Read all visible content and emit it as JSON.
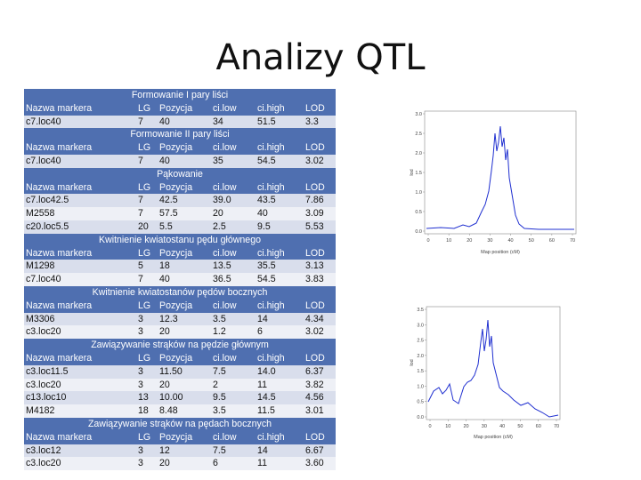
{
  "title": "Analizy QTL",
  "header": {
    "marker": "Nazwa markera",
    "lg": "LG",
    "pos": "Pozycja",
    "cilow": "ci.low",
    "cihigh": "ci.high",
    "lod": "LOD"
  },
  "sections": [
    {
      "name": "Formowanie I pary liści",
      "rows": [
        {
          "marker": "c7.loc40",
          "lg": "7",
          "pos": "40",
          "cilow": "34",
          "cihigh": "51.5",
          "lod": "3.3"
        }
      ]
    },
    {
      "name": "Formowanie II pary liści",
      "rows": [
        {
          "marker": "c7.loc40",
          "lg": "7",
          "pos": "40",
          "cilow": "35",
          "cihigh": "54.5",
          "lod": "3.02"
        }
      ]
    },
    {
      "name": "Pąkowanie",
      "rows": [
        {
          "marker": "c7.loc42.5",
          "lg": "7",
          "pos": "42.5",
          "cilow": "39.0",
          "cihigh": "43.5",
          "lod": "7.86"
        },
        {
          "marker": "M2558",
          "lg": "7",
          "pos": "57.5",
          "cilow": "20",
          "cihigh": "40",
          "lod": "3.09"
        },
        {
          "marker": "c20.loc5.5",
          "lg": "20",
          "pos": "5.5",
          "cilow": "2.5",
          "cihigh": "9.5",
          "lod": "5.53"
        }
      ]
    },
    {
      "name": "Kwitnienie kwiatostanu pędu głównego",
      "rows": [
        {
          "marker": "M1298",
          "lg": "5",
          "pos": "18",
          "cilow": "13.5",
          "cihigh": "35.5",
          "lod": "3.13"
        },
        {
          "marker": "c7.loc40",
          "lg": "7",
          "pos": "40",
          "cilow": "36.5",
          "cihigh": "54.5",
          "lod": "3.83"
        }
      ]
    },
    {
      "name": "Kwitnienie kwiatostanów pędów bocznych",
      "rows": [
        {
          "marker": "M3306",
          "lg": "3",
          "pos": "12.3",
          "cilow": "3.5",
          "cihigh": "14",
          "lod": "4.34"
        },
        {
          "marker": "c3.loc20",
          "lg": "3",
          "pos": "20",
          "cilow": "1.2",
          "cihigh": "6",
          "lod": "3.02"
        }
      ]
    },
    {
      "name": "Zawiązywanie strąków na pędzie głównym",
      "rows": [
        {
          "marker": "c3.loc11.5",
          "lg": "3",
          "pos": "11.50",
          "cilow": "7.5",
          "cihigh": "14.0",
          "lod": "6.37"
        },
        {
          "marker": "c3.loc20",
          "lg": "3",
          "pos": "20",
          "cilow": "2",
          "cihigh": "11",
          "lod": "3.82"
        },
        {
          "marker": "c13.loc10",
          "lg": "13",
          "pos": "10.00",
          "cilow": "9.5",
          "cihigh": "14.5",
          "lod": "4.56"
        },
        {
          "marker": "M4182",
          "lg": "18",
          "pos": "8.48",
          "cilow": "3.5",
          "cihigh": "11.5",
          "lod": "3.01"
        }
      ]
    },
    {
      "name": "Zawiązywanie strąków na pędach bocznych",
      "rows": [
        {
          "marker": "c3.loc12",
          "lg": "3",
          "pos": "12",
          "cilow": "7.5",
          "cihigh": "14",
          "lod": "6.67"
        },
        {
          "marker": "c3.loc20",
          "lg": "3",
          "pos": "20",
          "cilow": "6",
          "cihigh": "11",
          "lod": "3.60"
        }
      ]
    }
  ],
  "plots": [
    {
      "xlabel": "Map position (cM)",
      "ylabel": "lod",
      "yticks": [
        "0.0",
        "0.5",
        "1.0",
        "1.5",
        "2.0",
        "2.5",
        "3.0"
      ],
      "xticks": [
        "0",
        "10",
        "20",
        "30",
        "40",
        "50",
        "60",
        "70"
      ]
    },
    {
      "xlabel": "Map position (cM)",
      "ylabel": "lod",
      "yticks": [
        "0.0",
        "0.5",
        "1.0",
        "1.5",
        "2.0",
        "2.5",
        "3.0",
        "3.5"
      ],
      "xticks": [
        "0",
        "10",
        "20",
        "30",
        "40",
        "50",
        "60",
        "70"
      ]
    }
  ]
}
